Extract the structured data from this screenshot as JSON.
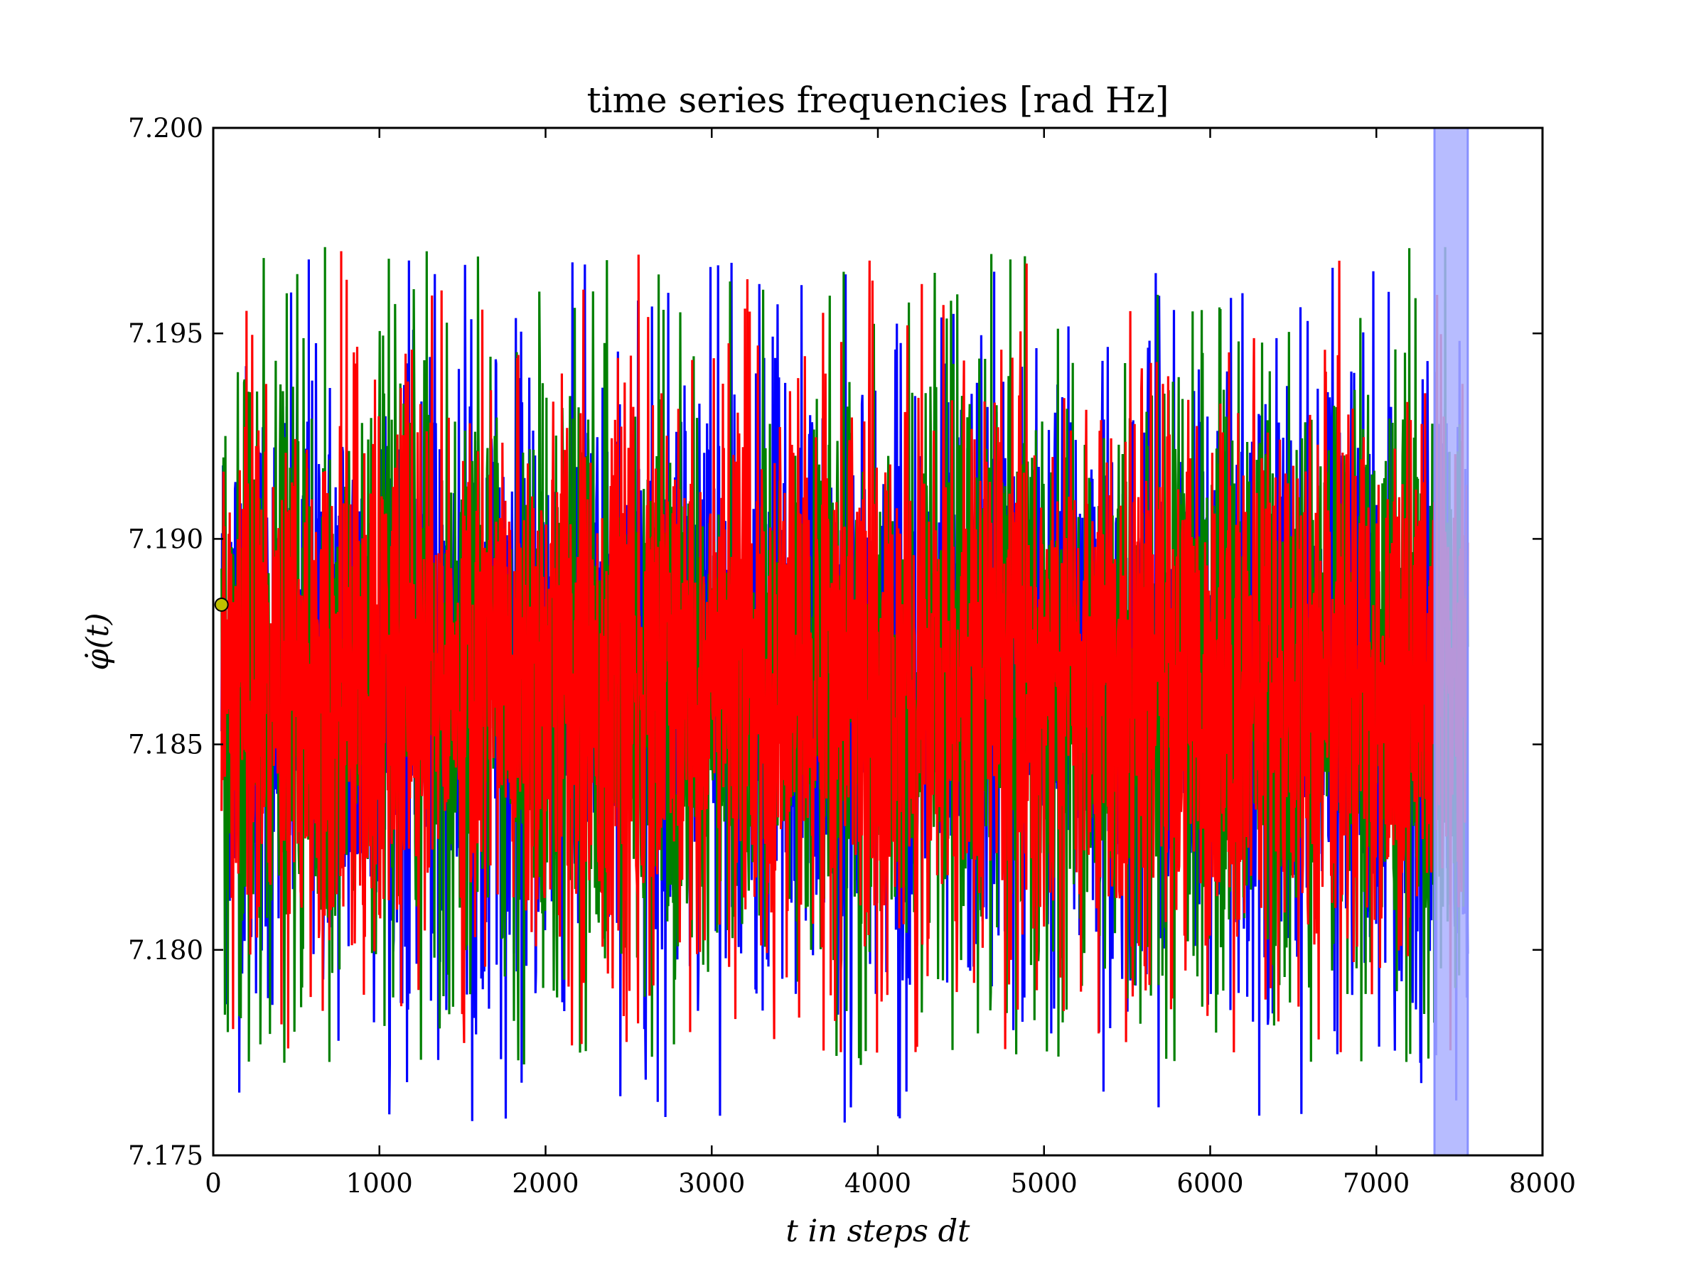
{
  "chart_data": {
    "type": "line",
    "title": "time series frequencies [rad Hz]",
    "xlabel": "t in steps dt",
    "ylabel": "φ̇(t)",
    "xlim": [
      0,
      8000
    ],
    "ylim": [
      7.175,
      7.2
    ],
    "xticks": [
      0,
      1000,
      2000,
      3000,
      4000,
      5000,
      6000,
      7000,
      8000
    ],
    "xtick_labels": [
      "0",
      "1000",
      "2000",
      "3000",
      "4000",
      "5000",
      "6000",
      "7000",
      "8000"
    ],
    "yticks": [
      7.175,
      7.18,
      7.185,
      7.19,
      7.195,
      7.2
    ],
    "ytick_labels": [
      "7.175",
      "7.180",
      "7.185",
      "7.190",
      "7.195",
      "7.200"
    ],
    "grid": false,
    "legend": "none",
    "x_extent": [
      50,
      7550
    ],
    "series": [
      {
        "color": "#0000ff",
        "mean": 7.1865,
        "band": [
          7.1825,
          7.1905
        ],
        "min": 7.1758,
        "max": 7.1968
      },
      {
        "color": "#008000",
        "mean": 7.1865,
        "band": [
          7.1825,
          7.1905
        ],
        "min": 7.1772,
        "max": 7.1971
      },
      {
        "color": "#ff0000",
        "mean": 7.1865,
        "band": [
          7.1828,
          7.1902
        ],
        "min": 7.1775,
        "max": 7.197
      }
    ],
    "highlight_span": {
      "x": [
        7350,
        7550
      ],
      "color": "#aab0ff"
    },
    "marker": {
      "x": 50,
      "y": 7.1884,
      "color": "#bfbf00"
    }
  }
}
